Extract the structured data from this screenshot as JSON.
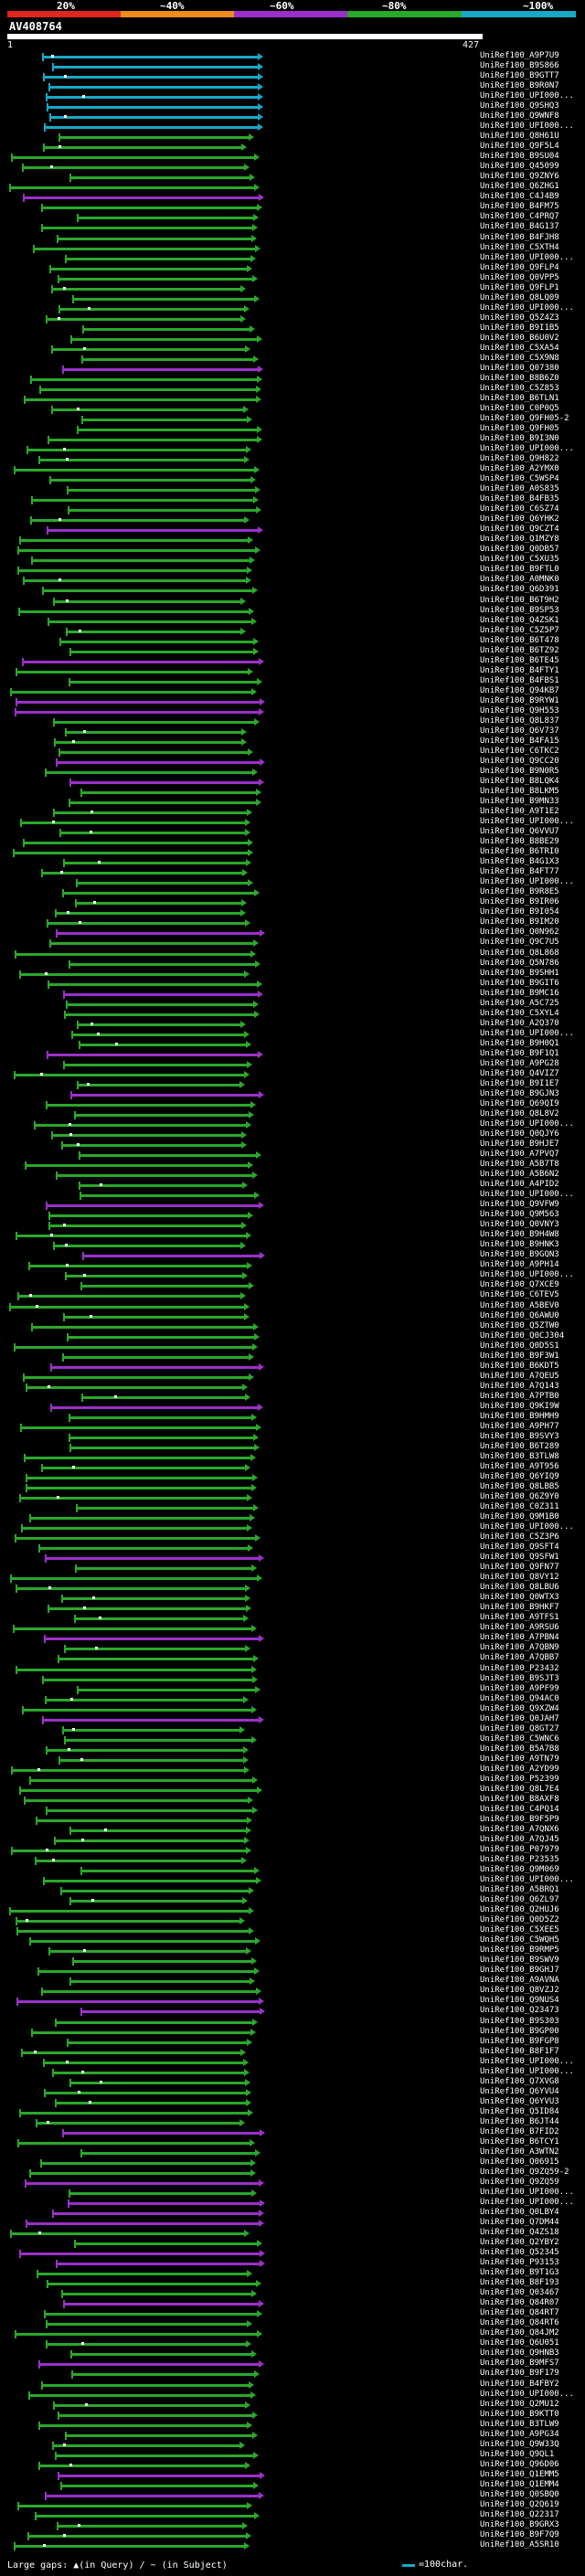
{
  "scale": {
    "labels": [
      "20%",
      "~40%",
      "~60%",
      "~80%",
      "~100%"
    ],
    "colors": [
      "#e0261e",
      "#f08c1e",
      "#9b30c8",
      "#2aa82a",
      "#17a8c8"
    ]
  },
  "query": {
    "id": "AV408764",
    "start": "1",
    "end": "427"
  },
  "footer": {
    "legend": "Large gaps: ▲(in Query) / ~ (in Subject)",
    "scale_text": "=100char."
  },
  "hits": [
    "UniRef100_A9P7U9",
    "UniRef100_B9S866",
    "UniRef100_B9GTT7",
    "UniRef100_B9R0N7",
    "UniRef100_UPI000...",
    "UniRef100_Q9SHQ3",
    "UniRef100_Q9WNF8",
    "UniRef100_UPI000...",
    "UniRef100_Q8H61U",
    "UniRef100_Q9F5L4",
    "UniRef100_B9SU04",
    "UniRef100_Q45099",
    "UniRef100_Q9ZNY6",
    "UniRef100_Q6ZHG1",
    "UniRef100_C4J4B9",
    "UniRef100_B4FM75",
    "UniRef100_C4PRQ7",
    "UniRef100_B4G137",
    "UniRef100_B4FJH8",
    "UniRef100_C5XTH4",
    "UniRef100_UPI000...",
    "UniRef100_Q9FLP4",
    "UniRef100_Q0VPP5",
    "UniRef100_Q9FLP1",
    "UniRef100_Q8LQ09",
    "UniRef100_UPI000...",
    "UniRef100_Q5Z4Z3",
    "UniRef100_B9I1B5",
    "UniRef100_B6U0V2",
    "UniRef100_C5XA54",
    "UniRef100_C5X9N8",
    "UniRef100_Q07380",
    "UniRef100_B8B6Z0",
    "UniRef100_C5Z853",
    "UniRef100_B6TLN1",
    "UniRef100_C0P0Q5",
    "UniRef100_Q9FH05-2",
    "UniRef100_Q9FH05",
    "UniRef100_B9I3N0",
    "UniRef100_UPI000...",
    "UniRef100_Q9H822",
    "UniRef100_A2YMX0",
    "UniRef100_C5WSP4",
    "UniRef100_A0S835",
    "UniRef100_B4FB35",
    "UniRef100_C6SZ74",
    "UniRef100_Q6YHK2",
    "UniRef100_Q9CZT4",
    "UniRef100_Q1MZY8",
    "UniRef100_Q0DB57",
    "UniRef100_C5XU35",
    "UniRef100_B9FTL0",
    "UniRef100_A0MNK0",
    "UniRef100_Q6D391",
    "UniRef100_B6T9H2",
    "UniRef100_B9SP53",
    "UniRef100_Q4ZSK1",
    "UniRef100_C5Z5P7",
    "UniRef100_B6T478",
    "UniRef100_B6TZ92",
    "UniRef100_B6TE45",
    "UniRef100_B4FTY1",
    "UniRef100_B4FBS1",
    "UniRef100_Q94KB7",
    "UniRef100_B9RYW1",
    "UniRef100_Q9H553",
    "UniRef100_Q8L837",
    "UniRef100_Q6V737",
    "UniRef100_B4FA15",
    "UniRef100_C6TKC2",
    "UniRef100_Q9CC20",
    "UniRef100_B9N0R5",
    "UniRef100_B8LQK4",
    "UniRef100_B8LKM5",
    "UniRef100_B9MN33",
    "UniRef100_A9T1E2",
    "UniRef100_UPI000...",
    "UniRef100_Q6VVU7",
    "UniRef100_B8BE29",
    "UniRef100_B6TRI0",
    "UniRef100_B4G1X3",
    "UniRef100_B4FT77",
    "UniRef100_UPI000...",
    "UniRef100_B9R8E5",
    "UniRef100_B9IR06",
    "UniRef100_B9I054",
    "UniRef100_B9IM20",
    "UniRef100_Q0N962",
    "UniRef100_Q9C7U5",
    "UniRef100_Q8L868",
    "UniRef100_Q5N786",
    "UniRef100_B9SHH1",
    "UniRef100_B9GIT6",
    "UniRef100_B9MC16",
    "UniRef100_A5C725",
    "UniRef100_C5XYL4",
    "UniRef100_A2Q370",
    "UniRef100_UPI000...",
    "UniRef100_B9H0Q1",
    "UniRef100_B9F1Q1",
    "UniRef100_A9PG28",
    "UniRef100_Q4VIZ7",
    "UniRef100_B9I1E7",
    "UniRef100_B9GJN3",
    "UniRef100_Q69QI9",
    "UniRef100_Q8L8V2",
    "UniRef100_UPI000...",
    "UniRef100_Q0QJY6",
    "UniRef100_B9HJE7",
    "UniRef100_A7PVQ7",
    "UniRef100_A5B7T8",
    "UniRef100_A5B6N2",
    "UniRef100_A4PID2",
    "UniRef100_UPI000...",
    "UniRef100_Q9VFW9",
    "UniRef100_Q9M563",
    "UniRef100_Q0VNY3",
    "UniRef100_B9H4W8",
    "UniRef100_B9HNK3",
    "UniRef100_B9GQN3",
    "UniRef100_A9PH14",
    "UniRef100_UPI000...",
    "UniRef100_Q7XCE9",
    "UniRef100_C6TEV5",
    "UniRef100_A5BEV0",
    "UniRef100_Q6AWU0",
    "UniRef100_Q5ZTW0",
    "UniRef100_Q0CJ304",
    "UniRef100_Q0D5S1",
    "UniRef100_B9F3W1",
    "UniRef100_B6KDT5",
    "UniRef100_A7QEU5",
    "UniRef100_A7Q143",
    "UniRef100_A7PTB0",
    "UniRef100_Q9KI9W",
    "UniRef100_B9HMH9",
    "UniRef100_A9PH77",
    "UniRef100_B9SVY3",
    "UniRef100_B6T289",
    "UniRef100_B3TLW8",
    "UniRef100_A9T956",
    "UniRef100_Q6YIQ9",
    "UniRef100_Q8LBB5",
    "UniRef100_Q6Z9Y0",
    "UniRef100_C0Z311",
    "UniRef100_Q9M1B0",
    "UniRef100_UPI000...",
    "UniRef100_C5Z3P6",
    "UniRef100_Q9SFT4",
    "UniRef100_Q9SFW1",
    "UniRef100_Q9FN77",
    "UniRef100_Q8VY12",
    "UniRef100_Q8LBU6",
    "UniRef100_Q0WTX3",
    "UniRef100_B9HKF7",
    "UniRef100_A9TFS1",
    "UniRef100_A9RSU6",
    "UniRef100_A7PBN4",
    "UniRef100_A7QBN9",
    "UniRef100_A7QBB7",
    "UniRef100_P23432",
    "UniRef100_B9SJT3",
    "UniRef100_A9PF99",
    "UniRef100_Q94AC0",
    "UniRef100_Q9XZW4",
    "UniRef100_Q0JAH7",
    "UniRef100_Q8GT27",
    "UniRef100_C5WNC6",
    "UniRef100_B5A7B8",
    "UniRef100_A9TN79",
    "UniRef100_A2YD99",
    "UniRef100_P52399",
    "UniRef100_Q8L7E4",
    "UniRef100_B8AXF8",
    "UniRef100_C4PQ14",
    "UniRef100_B9F5P9",
    "UniRef100_A7QNX6",
    "UniRef100_A7QJ45",
    "UniRef100_P07979",
    "UniRef100_P23535",
    "UniRef100_Q9M069",
    "UniRef100_UPI000...",
    "UniRef100_A5BRQ1",
    "UniRef100_Q6ZL97",
    "UniRef100_Q2HUJ6",
    "UniRef100_Q0D5Z2",
    "UniRef100_C5XEE5",
    "UniRef100_C5WQH5",
    "UniRef100_B9RMP5",
    "UniRef100_B9SWV9",
    "UniRef100_B9GHJ7",
    "UniRef100_A9AVNA",
    "UniRef100_Q8VZJ2",
    "UniRef100_Q9NUS4",
    "UniRef100_Q23473",
    "UniRef100_B9S303",
    "UniRef100_B9GP00",
    "UniRef100_B9FGP8",
    "UniRef100_B8F1F7",
    "UniRef100_UPI000...",
    "UniRef100_UPI000...",
    "UniRef100_Q7XVG8",
    "UniRef100_Q6YVU4",
    "UniRef100_Q6YVU3",
    "UniRef100_Q5ID84",
    "UniRef100_B6JT44",
    "UniRef100_B7FID2",
    "UniRef100_B6TCY1",
    "UniRef100_A3WTN2",
    "UniRef100_Q06915",
    "UniRef100_Q9ZQ59-2",
    "UniRef100_Q9ZQ59",
    "UniRef100_UPI000...",
    "UniRef100_UPI000...",
    "UniRef100_Q0LBY4",
    "UniRef100_Q7DM44",
    "UniRef100_Q4ZS18",
    "UniRef100_Q2YBY2",
    "UniRef100_Q52345",
    "UniRef100_P93153",
    "UniRef100_B9T1G3",
    "UniRef100_B8F193",
    "UniRef100_Q03467",
    "UniRef100_Q84R07",
    "UniRef100_Q84RT7",
    "UniRef100_Q84RT6",
    "UniRef100_Q84JM2",
    "UniRef100_Q6U051",
    "UniRef100_Q9HNB3",
    "UniRef100_B9MFS7",
    "UniRef100_B9F179",
    "UniRef100_B4FBY2",
    "UniRef100_UPI000...",
    "UniRef100_Q2MU12",
    "UniRef100_B9KTT0",
    "UniRef100_B3TLW9",
    "UniRef100_A9PG34",
    "UniRef100_Q9W33Q",
    "UniRef100_Q9QL1",
    "UniRef100_Q96D06",
    "UniRef100_Q1EMM5",
    "UniRef100_Q1EMM4",
    "UniRef100_Q0SBQ0",
    "UniRef100_Q2Q619",
    "UniRef100_Q22317",
    "UniRef100_B9GRX3",
    "UniRef100_B9F7Q9",
    "UniRef100_A5SR10"
  ]
}
